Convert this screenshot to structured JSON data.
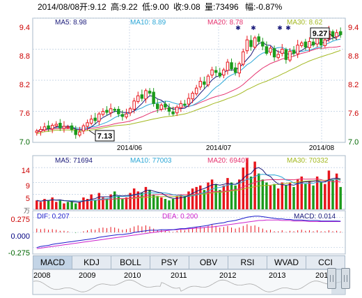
{
  "header": {
    "date": "2014/08/08",
    "open": "开:9.12",
    "high": "高:9.22",
    "low": "低:9.00",
    "close": "收:9.08",
    "volume": "量:73496",
    "change": "幅:-0.87%"
  },
  "price_panel": {
    "ma5": "MA5: 8.98",
    "ma10": "MA10: 8.89",
    "ma20": "MA20: 8.78",
    "ma30": "MA30: 8.62",
    "y_ticks": [
      "9.4",
      "8.8",
      "8.2",
      "7.6",
      "7.0"
    ],
    "x_ticks": [
      "2014/06",
      "2014/07",
      "2014/08"
    ],
    "high_marker": "9.27",
    "low_marker": "7.13"
  },
  "volume_panel": {
    "ma5": "MA5: 71694",
    "ma10": "MA10: 77003",
    "ma20": "MA20: 69407",
    "ma30": "MA30: 70332",
    "y_ticks": [
      "14",
      "9",
      "5"
    ],
    "unit": "万"
  },
  "macd_panel": {
    "dif": "DIF: 0.207",
    "dea": "DEA: 0.200",
    "macd": "MACD: 0.014",
    "y_ticks": [
      "0.275",
      "0.000",
      "-0.275"
    ]
  },
  "tabs": [
    "MACD",
    "KDJ",
    "BOLL",
    "PSY",
    "OBV",
    "RSI",
    "WVAD",
    "CCI"
  ],
  "active_tab": "MACD",
  "timeline": {
    "years": [
      "2008",
      "2009",
      "2010",
      "2011",
      "2012",
      "2013",
      "2014"
    ]
  },
  "colors": {
    "up": "#e8141b",
    "down": "#1c9b1c",
    "ma5": "#1a1a7a",
    "ma10": "#2aa6d6",
    "ma20": "#e5336f",
    "ma30": "#a3b820",
    "dif": "#1a1acc",
    "dea": "#cc22cc",
    "grid": "#b9cbe0"
  },
  "chart_data": {
    "type": "candlestick",
    "series": [
      {
        "name": "MA5",
        "value": 8.98
      },
      {
        "name": "MA10",
        "value": 8.89
      },
      {
        "name": "MA20",
        "value": 8.78
      },
      {
        "name": "MA30",
        "value": 8.62
      }
    ],
    "ylim": [
      7.0,
      9.4
    ],
    "closes": [
      7.22,
      7.25,
      7.3,
      7.27,
      7.33,
      7.35,
      7.28,
      7.31,
      7.3,
      7.25,
      7.15,
      7.2,
      7.32,
      7.38,
      7.45,
      7.42,
      7.55,
      7.6,
      7.58,
      7.65,
      7.62,
      7.55,
      7.5,
      7.55,
      7.65,
      7.8,
      7.9,
      7.85,
      8.0,
      7.95,
      7.75,
      7.65,
      7.72,
      7.68,
      7.6,
      7.55,
      7.68,
      7.75,
      7.72,
      7.85,
      7.95,
      8.05,
      8.18,
      8.12,
      8.28,
      8.4,
      8.35,
      8.28,
      8.4,
      8.55,
      8.42,
      8.35,
      8.52,
      8.75,
      8.98,
      8.85,
      9.02,
      8.95,
      8.86,
      8.72,
      8.82,
      8.65,
      8.7,
      8.8,
      8.6,
      8.76,
      8.72,
      8.88,
      8.92,
      8.84,
      8.95,
      8.88,
      9.02,
      8.88,
      8.98,
      9.15,
      9.05,
      9.12,
      9.08
    ],
    "volume_ylim": [
      0,
      18
    ],
    "volumes": [
      3,
      2.5,
      3.5,
      3,
      4,
      2.5,
      3,
      2,
      2.5,
      3,
      2,
      2.5,
      4,
      3.5,
      5,
      3,
      5.5,
      4,
      3.5,
      5,
      6,
      4.5,
      3.5,
      4,
      5.5,
      7,
      6,
      5.5,
      7.5,
      6.5,
      5,
      4.5,
      4,
      3.5,
      3,
      3.5,
      4.5,
      5,
      4.5,
      6,
      7,
      7.5,
      8,
      6.5,
      9,
      10,
      8.5,
      6.5,
      8,
      10.5,
      9,
      8,
      10,
      14,
      17,
      11,
      16,
      12,
      10,
      9,
      8,
      8.5,
      7,
      9,
      8,
      9,
      7.5,
      10,
      11,
      8.5,
      9.5,
      8,
      11,
      9,
      8.5,
      13,
      10,
      12,
      7.5
    ],
    "macd_ylim": [
      -0.4,
      0.4
    ],
    "macd": [
      0.07,
      0.06,
      0.07,
      0.05,
      0.06,
      0.05,
      0.03,
      0.03,
      0.02,
      0.0,
      -0.01,
      0.0,
      0.02,
      0.04,
      0.06,
      0.05,
      0.08,
      0.09,
      0.08,
      0.1,
      0.09,
      0.07,
      0.05,
      0.06,
      0.08,
      0.11,
      0.13,
      0.11,
      0.13,
      0.11,
      0.07,
      0.04,
      0.05,
      0.03,
      0.02,
      0.01,
      0.03,
      0.05,
      0.04,
      0.06,
      0.08,
      0.1,
      0.11,
      0.09,
      0.12,
      0.14,
      0.12,
      0.09,
      0.1,
      0.12,
      0.09,
      0.07,
      0.09,
      0.12,
      0.15,
      0.12,
      0.13,
      0.1,
      0.07,
      0.04,
      0.05,
      0.02,
      0.02,
      0.04,
      0.01,
      0.03,
      0.02,
      0.04,
      0.05,
      0.03,
      0.04,
      0.02,
      0.04,
      0.02,
      0.02,
      0.04,
      0.02,
      0.03,
      0.014
    ],
    "dif": [
      -0.28,
      -0.26,
      -0.25,
      -0.24,
      -0.22,
      -0.21,
      -0.2,
      -0.19,
      -0.18,
      -0.17,
      -0.16,
      -0.15,
      -0.14,
      -0.13,
      -0.12,
      -0.11,
      -0.09,
      -0.08,
      -0.07,
      -0.06,
      -0.05,
      -0.04,
      -0.04,
      -0.03,
      -0.02,
      0.0,
      0.01,
      0.02,
      0.03,
      0.04,
      0.04,
      0.04,
      0.05,
      0.05,
      0.05,
      0.05,
      0.06,
      0.07,
      0.07,
      0.08,
      0.09,
      0.1,
      0.11,
      0.12,
      0.13,
      0.15,
      0.16,
      0.17,
      0.18,
      0.2,
      0.21,
      0.22,
      0.24,
      0.26,
      0.28,
      0.29,
      0.3,
      0.3,
      0.29,
      0.28,
      0.27,
      0.26,
      0.25,
      0.25,
      0.24,
      0.24,
      0.23,
      0.23,
      0.23,
      0.22,
      0.22,
      0.22,
      0.22,
      0.21,
      0.21,
      0.21,
      0.21,
      0.21,
      0.207
    ],
    "dea": [
      -0.3,
      -0.29,
      -0.28,
      -0.27,
      -0.26,
      -0.25,
      -0.24,
      -0.23,
      -0.22,
      -0.21,
      -0.2,
      -0.19,
      -0.18,
      -0.17,
      -0.16,
      -0.15,
      -0.14,
      -0.13,
      -0.12,
      -0.11,
      -0.1,
      -0.09,
      -0.08,
      -0.07,
      -0.06,
      -0.05,
      -0.04,
      -0.03,
      -0.02,
      -0.01,
      0.0,
      0.01,
      0.02,
      0.03,
      0.04,
      0.05,
      0.05,
      0.06,
      0.06,
      0.07,
      0.07,
      0.08,
      0.08,
      0.09,
      0.1,
      0.1,
      0.11,
      0.12,
      0.13,
      0.14,
      0.15,
      0.16,
      0.17,
      0.18,
      0.19,
      0.2,
      0.21,
      0.22,
      0.22,
      0.23,
      0.23,
      0.23,
      0.23,
      0.22,
      0.22,
      0.22,
      0.21,
      0.21,
      0.21,
      0.21,
      0.2,
      0.2,
      0.2,
      0.2,
      0.2,
      0.2,
      0.2,
      0.2,
      0.2
    ]
  }
}
